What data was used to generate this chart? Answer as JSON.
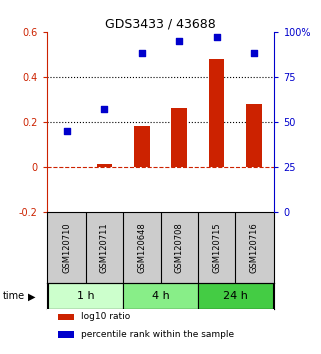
{
  "title": "GDS3433 / 43688",
  "samples": [
    "GSM120710",
    "GSM120711",
    "GSM120648",
    "GSM120708",
    "GSM120715",
    "GSM120716"
  ],
  "log10_ratio": [
    0.0,
    0.01,
    0.18,
    0.26,
    0.48,
    0.28
  ],
  "percentile_rank": [
    45,
    57,
    88,
    95,
    97,
    88
  ],
  "bar_color": "#cc2200",
  "dot_color": "#0000cc",
  "ylim_left": [
    -0.2,
    0.6
  ],
  "ylim_right": [
    0,
    100
  ],
  "yticks_left": [
    -0.2,
    0.0,
    0.2,
    0.4,
    0.6
  ],
  "yticks_right": [
    0,
    25,
    50,
    75,
    100
  ],
  "yticklabels_left": [
    "-0.2",
    "0",
    "0.2",
    "0.4",
    "0.6"
  ],
  "yticklabels_right": [
    "0",
    "25",
    "50",
    "75",
    "100%"
  ],
  "hlines_dotted": [
    0.2,
    0.4
  ],
  "hline_dashed": 0.0,
  "time_groups": [
    {
      "label": "1 h",
      "indices": [
        0,
        1
      ],
      "color": "#ccffcc"
    },
    {
      "label": "4 h",
      "indices": [
        2,
        3
      ],
      "color": "#88ee88"
    },
    {
      "label": "24 h",
      "indices": [
        4,
        5
      ],
      "color": "#44cc44"
    }
  ],
  "legend_items": [
    {
      "label": "log10 ratio",
      "color": "#cc2200"
    },
    {
      "label": "percentile rank within the sample",
      "color": "#0000cc"
    }
  ],
  "background_color": "#ffffff",
  "label_area_color": "#cccccc"
}
